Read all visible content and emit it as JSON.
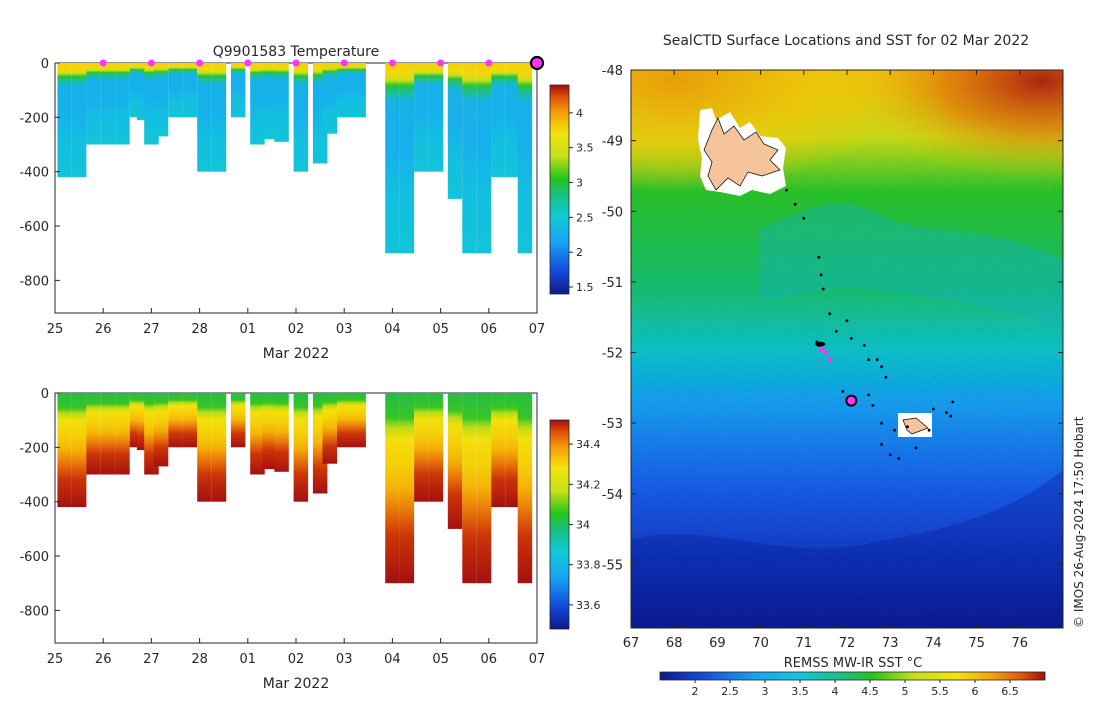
{
  "sections": [
    {
      "title": "Q9901583  Temperature",
      "xlabel": "Mar 2022",
      "colorbar": {
        "ticks": [
          "4",
          "3.5",
          "3",
          "2.5",
          "2",
          "1.5"
        ],
        "range": [
          1.4,
          4.4
        ]
      }
    },
    {
      "title": "",
      "xlabel": "Mar 2022",
      "colorbar": {
        "ticks": [
          "34.4",
          "34.2",
          "34",
          "33.8",
          "33.6"
        ],
        "range": [
          33.48,
          34.52
        ]
      }
    }
  ],
  "map": {
    "title": "SealCTD Surface Locations and SST for 02 Mar 2022",
    "colorbar_label": "REMSS MW-IR SST °C",
    "credit": "© IMOS 26-Aug-2024 17:50 Hobart"
  },
  "chart_data": [
    {
      "type": "heatmap",
      "name": "temperature-section",
      "title": "Q9901583  Temperature",
      "xlabel": "Mar 2022",
      "ylabel": "",
      "x_tick_labels": [
        "25",
        "26",
        "27",
        "28",
        "01",
        "02",
        "03",
        "04",
        "05",
        "06",
        "07"
      ],
      "x_tick_days": [
        0,
        1,
        2,
        3,
        4,
        5,
        6,
        7,
        8,
        9,
        10
      ],
      "y_tick_labels": [
        "0",
        "-200",
        "-400",
        "-600",
        "-800"
      ],
      "y_tick_values": [
        0,
        -200,
        -400,
        -600,
        -800
      ],
      "xlim_days": [
        0,
        10
      ],
      "ylim": [
        -920,
        0
      ],
      "colorbar_ticks": [
        4,
        3.5,
        3,
        2.5,
        2,
        1.5
      ],
      "colorbar_range": [
        1.4,
        4.4
      ],
      "markers_days": [
        1.0,
        2.0,
        3.0,
        4.0,
        5.0,
        6.0,
        7.0,
        8.0,
        9.0
      ],
      "current_marker_day": 10.0,
      "profiles": [
        {
          "day": 0.2,
          "bottom": -420
        },
        {
          "day": 0.5,
          "bottom": -420
        },
        {
          "day": 0.8,
          "bottom": -300
        },
        {
          "day": 1.1,
          "bottom": -300
        },
        {
          "day": 1.4,
          "bottom": -300
        },
        {
          "day": 1.7,
          "bottom": -200
        },
        {
          "day": 1.85,
          "bottom": -210
        },
        {
          "day": 2.0,
          "bottom": -300
        },
        {
          "day": 2.2,
          "bottom": -270
        },
        {
          "day": 2.5,
          "bottom": -200
        },
        {
          "day": 2.8,
          "bottom": -200
        },
        {
          "day": 3.1,
          "bottom": -400
        },
        {
          "day": 3.4,
          "bottom": -400
        },
        {
          "day": 3.8,
          "bottom": -200
        },
        {
          "day": 4.2,
          "bottom": -300
        },
        {
          "day": 4.45,
          "bottom": -280
        },
        {
          "day": 4.7,
          "bottom": -290
        },
        {
          "day": 5.1,
          "bottom": -400
        },
        {
          "day": 5.5,
          "bottom": -370
        },
        {
          "day": 5.7,
          "bottom": -260
        },
        {
          "day": 6.0,
          "bottom": -200
        },
        {
          "day": 6.3,
          "bottom": -200
        },
        {
          "day": 7.0,
          "bottom": -700
        },
        {
          "day": 7.3,
          "bottom": -700
        },
        {
          "day": 7.6,
          "bottom": -400
        },
        {
          "day": 7.9,
          "bottom": -400
        },
        {
          "day": 8.3,
          "bottom": -500
        },
        {
          "day": 8.6,
          "bottom": -700
        },
        {
          "day": 8.9,
          "bottom": -700
        },
        {
          "day": 9.2,
          "bottom": -420
        },
        {
          "day": 9.5,
          "bottom": -420
        },
        {
          "day": 9.75,
          "bottom": -700
        }
      ]
    },
    {
      "type": "heatmap",
      "name": "salinity-section",
      "title": "",
      "xlabel": "Mar 2022",
      "ylabel": "",
      "x_tick_labels": [
        "25",
        "26",
        "27",
        "28",
        "01",
        "02",
        "03",
        "04",
        "05",
        "06",
        "07"
      ],
      "x_tick_days": [
        0,
        1,
        2,
        3,
        4,
        5,
        6,
        7,
        8,
        9,
        10
      ],
      "y_tick_labels": [
        "0",
        "-200",
        "-400",
        "-600",
        "-800"
      ],
      "y_tick_values": [
        0,
        -200,
        -400,
        -600,
        -800
      ],
      "xlim_days": [
        0,
        10
      ],
      "ylim": [
        -920,
        0
      ],
      "colorbar_ticks": [
        34.4,
        34.2,
        34,
        33.8,
        33.6
      ],
      "colorbar_range": [
        33.48,
        34.52
      ],
      "profiles": [
        {
          "day": 0.2,
          "bottom": -420
        },
        {
          "day": 0.5,
          "bottom": -420
        },
        {
          "day": 0.8,
          "bottom": -300
        },
        {
          "day": 1.1,
          "bottom": -300
        },
        {
          "day": 1.4,
          "bottom": -300
        },
        {
          "day": 1.7,
          "bottom": -200
        },
        {
          "day": 1.85,
          "bottom": -210
        },
        {
          "day": 2.0,
          "bottom": -300
        },
        {
          "day": 2.2,
          "bottom": -270
        },
        {
          "day": 2.5,
          "bottom": -200
        },
        {
          "day": 2.8,
          "bottom": -200
        },
        {
          "day": 3.1,
          "bottom": -400
        },
        {
          "day": 3.4,
          "bottom": -400
        },
        {
          "day": 3.8,
          "bottom": -200
        },
        {
          "day": 4.2,
          "bottom": -300
        },
        {
          "day": 4.45,
          "bottom": -280
        },
        {
          "day": 4.7,
          "bottom": -290
        },
        {
          "day": 5.1,
          "bottom": -400
        },
        {
          "day": 5.5,
          "bottom": -370
        },
        {
          "day": 5.7,
          "bottom": -260
        },
        {
          "day": 6.0,
          "bottom": -200
        },
        {
          "day": 6.3,
          "bottom": -200
        },
        {
          "day": 7.0,
          "bottom": -700
        },
        {
          "day": 7.3,
          "bottom": -700
        },
        {
          "day": 7.6,
          "bottom": -400
        },
        {
          "day": 7.9,
          "bottom": -400
        },
        {
          "day": 8.3,
          "bottom": -500
        },
        {
          "day": 8.6,
          "bottom": -700
        },
        {
          "day": 8.9,
          "bottom": -700
        },
        {
          "day": 9.2,
          "bottom": -420
        },
        {
          "day": 9.5,
          "bottom": -420
        },
        {
          "day": 9.75,
          "bottom": -700
        }
      ]
    },
    {
      "type": "heatmap",
      "name": "sst-map",
      "title": "SealCTD Surface Locations and SST for 02 Mar 2022",
      "xlabel": "",
      "ylabel": "",
      "x_tick_labels": [
        "67",
        "68",
        "69",
        "70",
        "71",
        "72",
        "73",
        "74",
        "75",
        "76"
      ],
      "x_ticks": [
        67,
        68,
        69,
        70,
        71,
        72,
        73,
        74,
        75,
        76
      ],
      "y_tick_labels": [
        "-48",
        "-49",
        "-50",
        "-51",
        "-52",
        "-53",
        "-54",
        "-55"
      ],
      "y_ticks": [
        -48,
        -49,
        -50,
        -51,
        -52,
        -53,
        -54,
        -55
      ],
      "xlim": [
        67,
        77
      ],
      "ylim": [
        -55.9,
        -48
      ],
      "colorbar_label": "REMSS MW-IR SST °C",
      "colorbar_ticks": [
        2,
        2.5,
        3,
        3.5,
        4,
        4.5,
        5,
        5.5,
        6,
        6.5
      ],
      "colorbar_range": [
        1.5,
        7.0
      ],
      "track": [
        [
          70.6,
          -49.7
        ],
        [
          70.8,
          -49.9
        ],
        [
          71.0,
          -50.1
        ],
        [
          71.35,
          -50.65
        ],
        [
          71.4,
          -50.9
        ],
        [
          71.45,
          -51.1
        ],
        [
          71.6,
          -51.45
        ],
        [
          71.75,
          -51.7
        ],
        [
          72.0,
          -51.55
        ],
        [
          72.1,
          -51.8
        ],
        [
          71.3,
          -51.85
        ],
        [
          71.35,
          -51.9
        ],
        [
          71.45,
          -51.88
        ],
        [
          72.4,
          -51.9
        ],
        [
          72.5,
          -52.1
        ],
        [
          72.7,
          -52.1
        ],
        [
          72.8,
          -52.2
        ],
        [
          72.9,
          -52.35
        ],
        [
          72.5,
          -52.6
        ],
        [
          71.9,
          -52.55
        ],
        [
          72.6,
          -52.75
        ],
        [
          72.8,
          -53.0
        ],
        [
          73.1,
          -53.1
        ],
        [
          73.4,
          -53.05
        ],
        [
          72.8,
          -53.3
        ],
        [
          73.0,
          -53.45
        ],
        [
          73.2,
          -53.5
        ],
        [
          73.6,
          -53.35
        ],
        [
          73.9,
          -53.1
        ],
        [
          74.0,
          -52.8
        ],
        [
          74.3,
          -52.85
        ],
        [
          74.4,
          -52.9
        ],
        [
          74.45,
          -52.7
        ]
      ],
      "track_highlight": [
        [
          71.5,
          -52.0
        ],
        [
          71.6,
          -52.1
        ],
        [
          71.4,
          -51.95
        ]
      ],
      "current_position": [
        72.1,
        -52.68
      ]
    }
  ]
}
